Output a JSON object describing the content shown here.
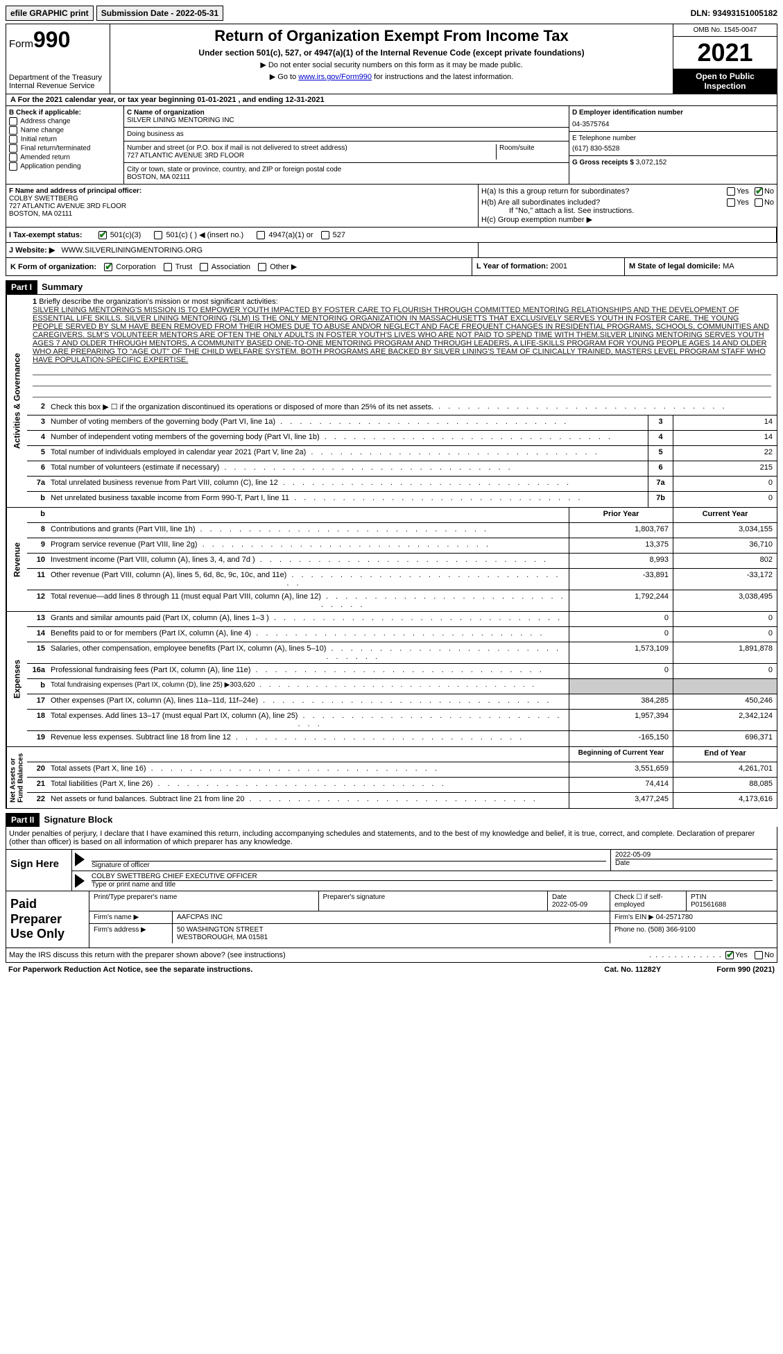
{
  "topbar": {
    "efile": "efile GRAPHIC print",
    "sub_label": "Submission Date - 2022-05-31",
    "dln": "DLN: 93493151005182"
  },
  "header": {
    "form_prefix": "Form",
    "form_no": "990",
    "dept": "Department of the Treasury\nInternal Revenue Service",
    "title": "Return of Organization Exempt From Income Tax",
    "subtitle": "Under section 501(c), 527, or 4947(a)(1) of the Internal Revenue Code (except private foundations)",
    "note1": "▶ Do not enter social security numbers on this form as it may be made public.",
    "note2_pre": "▶ Go to ",
    "note2_link": "www.irs.gov/Form990",
    "note2_post": " for instructions and the latest information.",
    "omb": "OMB No. 1545-0047",
    "year": "2021",
    "open": "Open to Public Inspection"
  },
  "line_a": "A For the 2021 calendar year, or tax year beginning 01-01-2021    , and ending 12-31-2021",
  "block_b": {
    "title": "B Check if applicable:",
    "items": [
      "Address change",
      "Name change",
      "Initial return",
      "Final return/terminated",
      "Amended return",
      "Application pending"
    ]
  },
  "block_c": {
    "name_lbl": "C Name of organization",
    "name": "SILVER LINING MENTORING INC",
    "dba_lbl": "Doing business as",
    "dba": "",
    "addr_lbl": "Number and street (or P.O. box if mail is not delivered to street address)",
    "addr": "727 ATLANTIC AVENUE 3RD FLOOR",
    "room_lbl": "Room/suite",
    "city_lbl": "City or town, state or province, country, and ZIP or foreign postal code",
    "city": "BOSTON, MA  02111"
  },
  "block_d": {
    "lbl": "D Employer identification number",
    "val": "04-3575764"
  },
  "block_e": {
    "lbl": "E Telephone number",
    "val": "(617) 830-5528"
  },
  "block_g": {
    "lbl": "G Gross receipts $",
    "val": "3,072,152"
  },
  "block_f": {
    "lbl": "F  Name and address of principal officer:",
    "name": "COLBY SWETTBERG",
    "addr1": "727 ATLANTIC AVENUE 3RD FLOOR",
    "addr2": "BOSTON, MA  02111"
  },
  "block_h": {
    "a": "H(a)  Is this a group return for subordinates?",
    "b": "H(b)  Are all subordinates included?",
    "bnote": "If \"No,\" attach a list. See instructions.",
    "c": "H(c)  Group exemption number ▶"
  },
  "row_i": {
    "lbl": "I    Tax-exempt status:",
    "c1": "501(c)(3)",
    "c2": "501(c) (   ) ◀ (insert no.)",
    "c3": "4947(a)(1) or",
    "c4": "527"
  },
  "row_j": {
    "lbl": "J   Website: ▶",
    "val": "WWW.SILVERLININGMENTORING.ORG"
  },
  "row_k": {
    "lbl": "K Form of organization:",
    "c1": "Corporation",
    "c2": "Trust",
    "c3": "Association",
    "c4": "Other ▶"
  },
  "row_l": {
    "lbl": "L Year of formation:",
    "val": "2001"
  },
  "row_m": {
    "lbl": "M State of legal domicile:",
    "val": "MA"
  },
  "part1": {
    "hdr": "Part I",
    "title": "Summary"
  },
  "mission": {
    "num": "1",
    "lbl": "Briefly describe the organization's mission or most significant activities:",
    "text": "SILVER LINING MENTORING'S MISSION IS TO EMPOWER YOUTH IMPACTED BY FOSTER CARE TO FLOURISH THROUGH COMMITTED MENTORING RELATIONSHIPS AND THE DEVELOPMENT OF ESSENTIAL LIFE SKILLS. SILVER LINING MENTORING (SLM) IS THE ONLY MENTORING ORGANIZATION IN MASSACHUSETTS THAT EXCLUSIVELY SERVES YOUTH IN FOSTER CARE. THE YOUNG PEOPLE SERVED BY SLM HAVE BEEN REMOVED FROM THEIR HOMES DUE TO ABUSE AND/OR NEGLECT AND FACE FREQUENT CHANGES IN RESIDENTIAL PROGRAMS, SCHOOLS, COMMUNITIES AND CAREGIVERS. SLM'S VOLUNTEER MENTORS ARE OFTEN THE ONLY ADULTS IN FOSTER YOUTH'S LIVES WHO ARE NOT PAID TO SPEND TIME WITH THEM.SILVER LINING MENTORING SERVES YOUTH AGES 7 AND OLDER THROUGH MENTORS, A COMMUNITY BASED ONE-TO-ONE MENTORING PROGRAM AND THROUGH LEADERS, A LIFE-SKILLS PROGRAM FOR YOUNG PEOPLE AGES 14 AND OLDER WHO ARE PREPARING TO \"AGE OUT\" OF THE CHILD WELFARE SYSTEM. BOTH PROGRAMS ARE BACKED BY SILVER LINING'S TEAM OF CLINICALLY TRAINED, MASTERS LEVEL PROGRAM STAFF WHO HAVE POPULATION-SPECIFIC EXPERTISE."
  },
  "gov_rows": [
    {
      "n": "2",
      "label": "Check this box ▶ ☐  if the organization discontinued its operations or disposed of more than 25% of its net assets.",
      "box": "",
      "val": ""
    },
    {
      "n": "3",
      "label": "Number of voting members of the governing body (Part VI, line 1a)",
      "box": "3",
      "val": "14"
    },
    {
      "n": "4",
      "label": "Number of independent voting members of the governing body (Part VI, line 1b)",
      "box": "4",
      "val": "14"
    },
    {
      "n": "5",
      "label": "Total number of individuals employed in calendar year 2021 (Part V, line 2a)",
      "box": "5",
      "val": "22"
    },
    {
      "n": "6",
      "label": "Total number of volunteers (estimate if necessary)",
      "box": "6",
      "val": "215"
    },
    {
      "n": "7a",
      "label": "Total unrelated business revenue from Part VIII, column (C), line 12",
      "box": "7a",
      "val": "0"
    },
    {
      "n": "b",
      "label": "Net unrelated business taxable income from Form 990-T, Part I, line 11",
      "box": "7b",
      "val": "0"
    }
  ],
  "rev_hdr": {
    "prior": "Prior Year",
    "curr": "Current Year"
  },
  "rev_rows": [
    {
      "n": "8",
      "label": "Contributions and grants (Part VIII, line 1h)",
      "p": "1,803,767",
      "c": "3,034,155"
    },
    {
      "n": "9",
      "label": "Program service revenue (Part VIII, line 2g)",
      "p": "13,375",
      "c": "36,710"
    },
    {
      "n": "10",
      "label": "Investment income (Part VIII, column (A), lines 3, 4, and 7d )",
      "p": "8,993",
      "c": "802"
    },
    {
      "n": "11",
      "label": "Other revenue (Part VIII, column (A), lines 5, 6d, 8c, 9c, 10c, and 11e)",
      "p": "-33,891",
      "c": "-33,172"
    },
    {
      "n": "12",
      "label": "Total revenue—add lines 8 through 11 (must equal Part VIII, column (A), line 12)",
      "p": "1,792,244",
      "c": "3,038,495"
    }
  ],
  "exp_rows": [
    {
      "n": "13",
      "label": "Grants and similar amounts paid (Part IX, column (A), lines 1–3 )",
      "p": "0",
      "c": "0"
    },
    {
      "n": "14",
      "label": "Benefits paid to or for members (Part IX, column (A), line 4)",
      "p": "0",
      "c": "0"
    },
    {
      "n": "15",
      "label": "Salaries, other compensation, employee benefits (Part IX, column (A), lines 5–10)",
      "p": "1,573,109",
      "c": "1,891,878"
    },
    {
      "n": "16a",
      "label": "Professional fundraising fees (Part IX, column (A), line 11e)",
      "p": "0",
      "c": "0"
    },
    {
      "n": "b",
      "label": "Total fundraising expenses (Part IX, column (D), line 25) ▶303,620",
      "p": "",
      "c": "",
      "shade": true,
      "small": true
    },
    {
      "n": "17",
      "label": "Other expenses (Part IX, column (A), lines 11a–11d, 11f–24e)",
      "p": "384,285",
      "c": "450,246"
    },
    {
      "n": "18",
      "label": "Total expenses. Add lines 13–17 (must equal Part IX, column (A), line 25)",
      "p": "1,957,394",
      "c": "2,342,124"
    },
    {
      "n": "19",
      "label": "Revenue less expenses. Subtract line 18 from line 12",
      "p": "-165,150",
      "c": "696,371"
    }
  ],
  "net_hdr": {
    "prior": "Beginning of Current Year",
    "curr": "End of Year"
  },
  "net_rows": [
    {
      "n": "20",
      "label": "Total assets (Part X, line 16)",
      "p": "3,551,659",
      "c": "4,261,701"
    },
    {
      "n": "21",
      "label": "Total liabilities (Part X, line 26)",
      "p": "74,414",
      "c": "88,085"
    },
    {
      "n": "22",
      "label": "Net assets or fund balances. Subtract line 21 from line 20",
      "p": "3,477,245",
      "c": "4,173,616"
    }
  ],
  "vtabs": {
    "gov": "Activities & Governance",
    "rev": "Revenue",
    "exp": "Expenses",
    "net": "Net Assets or\nFund Balances"
  },
  "part2": {
    "hdr": "Part II",
    "title": "Signature Block"
  },
  "sig_intro": "Under penalties of perjury, I declare that I have examined this return, including accompanying schedules and statements, and to the best of my knowledge and belief, it is true, correct, and complete. Declaration of preparer (other than officer) is based on all information of which preparer has any knowledge.",
  "sign": {
    "here": "Sign Here",
    "sig_lbl": "Signature of officer",
    "date_lbl": "Date",
    "date": "2022-05-09",
    "name": "COLBY SWETTBERG CHIEF EXECUTIVE OFFICER",
    "name_lbl": "Type or print name and title"
  },
  "prep": {
    "title": "Paid Preparer Use Only",
    "r1": {
      "c1": "Print/Type preparer's name",
      "c2": "Preparer's signature",
      "c3_lbl": "Date",
      "c3": "2022-05-09",
      "c4": "Check ☐ if self-employed",
      "c5_lbl": "PTIN",
      "c5": "P01561688"
    },
    "r2": {
      "lbl": "Firm's name      ▶",
      "val": "AAFCPAS INC",
      "ein_lbl": "Firm's EIN ▶",
      "ein": "04-2571780"
    },
    "r3": {
      "lbl": "Firm's address ▶",
      "val1": "50 WASHINGTON STREET",
      "val2": "WESTBOROUGH, MA  01581",
      "ph_lbl": "Phone no.",
      "ph": "(508) 366-9100"
    }
  },
  "footer": {
    "q": "May the IRS discuss this return with the preparer shown above? (see instructions)",
    "yes": "Yes",
    "no": "No",
    "l": "For Paperwork Reduction Act Notice, see the separate instructions.",
    "c": "Cat. No. 11282Y",
    "r": "Form 990 (2021)"
  }
}
